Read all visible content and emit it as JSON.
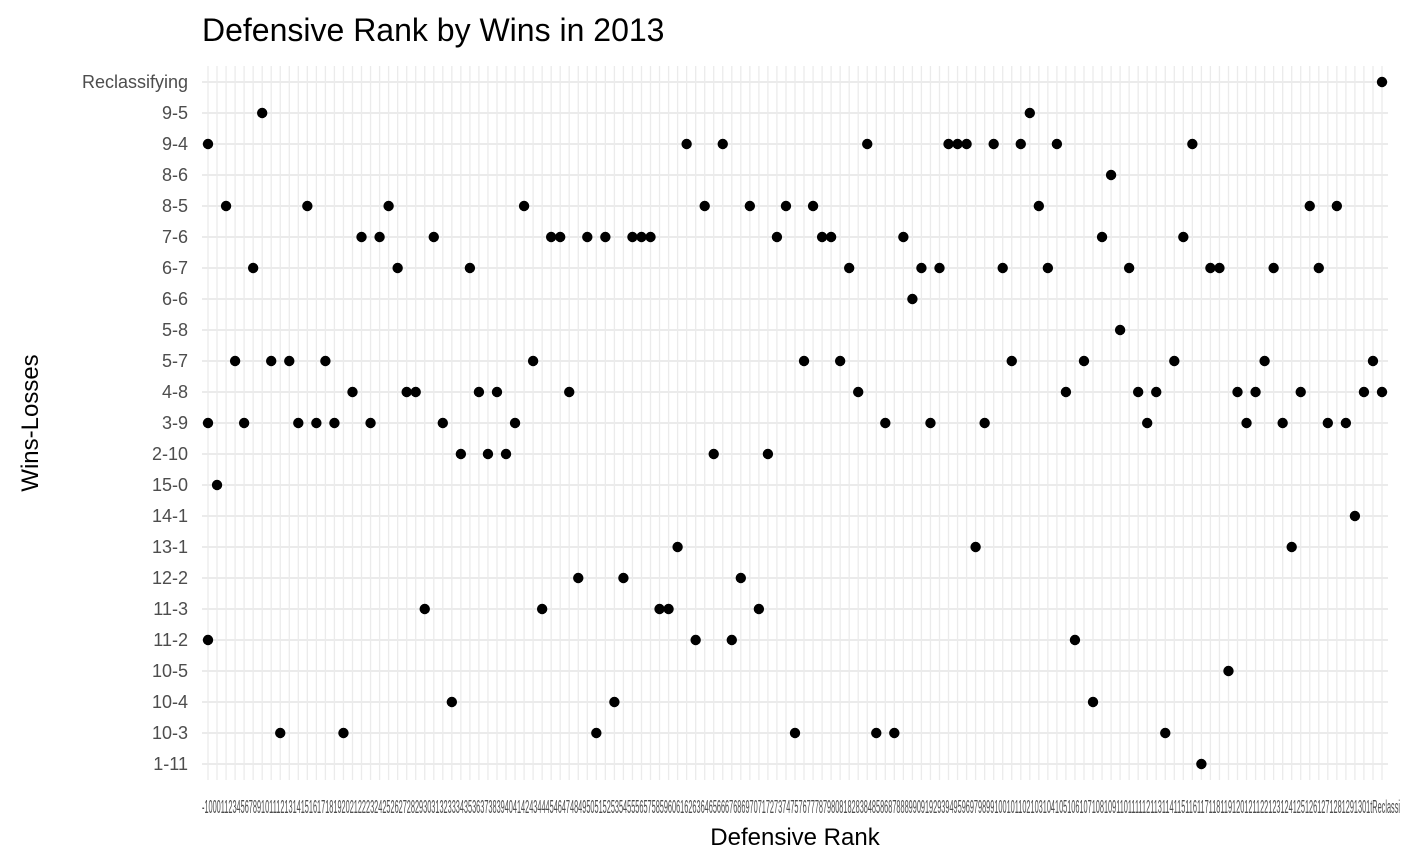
{
  "chart_data": {
    "type": "scatter",
    "title": "Defensive Rank by Wins in 2013",
    "xlabel": "Defensive Rank",
    "ylabel": "Wins-Losses",
    "grid": true,
    "legend": "none",
    "point_color": "#000000",
    "grid_color": "#ebebeb",
    "y_categories": [
      "1-11",
      "10-3",
      "10-4",
      "10-5",
      "11-2",
      "11-3",
      "12-2",
      "13-1",
      "14-1",
      "15-0",
      "2-10",
      "3-9",
      "4-8",
      "5-7",
      "5-8",
      "6-6",
      "6-7",
      "7-6",
      "8-5",
      "8-6",
      "9-4",
      "9-5",
      "Reclassifying"
    ],
    "x_category_count": 131,
    "points": [
      {
        "x": 1,
        "y": "9-4"
      },
      {
        "x": 1,
        "y": "3-9"
      },
      {
        "x": 1,
        "y": "11-2"
      },
      {
        "x": 2,
        "y": "15-0"
      },
      {
        "x": 3,
        "y": "8-5"
      },
      {
        "x": 4,
        "y": "5-7"
      },
      {
        "x": 5,
        "y": "3-9"
      },
      {
        "x": 6,
        "y": "6-7"
      },
      {
        "x": 7,
        "y": "9-5"
      },
      {
        "x": 8,
        "y": "5-7"
      },
      {
        "x": 9,
        "y": "10-3"
      },
      {
        "x": 10,
        "y": "5-7"
      },
      {
        "x": 11,
        "y": "3-9"
      },
      {
        "x": 12,
        "y": "8-5"
      },
      {
        "x": 13,
        "y": "3-9"
      },
      {
        "x": 14,
        "y": "5-7"
      },
      {
        "x": 15,
        "y": "3-9"
      },
      {
        "x": 16,
        "y": "10-3"
      },
      {
        "x": 17,
        "y": "4-8"
      },
      {
        "x": 18,
        "y": "7-6"
      },
      {
        "x": 19,
        "y": "3-9"
      },
      {
        "x": 20,
        "y": "7-6"
      },
      {
        "x": 21,
        "y": "8-5"
      },
      {
        "x": 22,
        "y": "6-7"
      },
      {
        "x": 23,
        "y": "4-8"
      },
      {
        "x": 24,
        "y": "4-8"
      },
      {
        "x": 25,
        "y": "11-3"
      },
      {
        "x": 26,
        "y": "7-6"
      },
      {
        "x": 27,
        "y": "3-9"
      },
      {
        "x": 28,
        "y": "10-4"
      },
      {
        "x": 29,
        "y": "2-10"
      },
      {
        "x": 30,
        "y": "6-7"
      },
      {
        "x": 31,
        "y": "4-8"
      },
      {
        "x": 32,
        "y": "2-10"
      },
      {
        "x": 33,
        "y": "4-8"
      },
      {
        "x": 34,
        "y": "2-10"
      },
      {
        "x": 35,
        "y": "3-9"
      },
      {
        "x": 36,
        "y": "8-5"
      },
      {
        "x": 37,
        "y": "5-7"
      },
      {
        "x": 38,
        "y": "11-3"
      },
      {
        "x": 39,
        "y": "7-6"
      },
      {
        "x": 40,
        "y": "7-6"
      },
      {
        "x": 41,
        "y": "4-8"
      },
      {
        "x": 42,
        "y": "12-2"
      },
      {
        "x": 43,
        "y": "7-6"
      },
      {
        "x": 44,
        "y": "10-3"
      },
      {
        "x": 45,
        "y": "7-6"
      },
      {
        "x": 46,
        "y": "10-4"
      },
      {
        "x": 47,
        "y": "12-2"
      },
      {
        "x": 48,
        "y": "7-6"
      },
      {
        "x": 49,
        "y": "7-6"
      },
      {
        "x": 50,
        "y": "7-6"
      },
      {
        "x": 51,
        "y": "11-3"
      },
      {
        "x": 52,
        "y": "11-3"
      },
      {
        "x": 53,
        "y": "13-1"
      },
      {
        "x": 54,
        "y": "9-4"
      },
      {
        "x": 55,
        "y": "11-2"
      },
      {
        "x": 56,
        "y": "8-5"
      },
      {
        "x": 57,
        "y": "2-10"
      },
      {
        "x": 58,
        "y": "9-4"
      },
      {
        "x": 59,
        "y": "11-2"
      },
      {
        "x": 60,
        "y": "12-2"
      },
      {
        "x": 61,
        "y": "8-5"
      },
      {
        "x": 62,
        "y": "11-3"
      },
      {
        "x": 63,
        "y": "2-10"
      },
      {
        "x": 64,
        "y": "7-6"
      },
      {
        "x": 65,
        "y": "8-5"
      },
      {
        "x": 66,
        "y": "10-3"
      },
      {
        "x": 67,
        "y": "5-7"
      },
      {
        "x": 68,
        "y": "8-5"
      },
      {
        "x": 69,
        "y": "7-6"
      },
      {
        "x": 70,
        "y": "7-6"
      },
      {
        "x": 71,
        "y": "5-7"
      },
      {
        "x": 72,
        "y": "6-7"
      },
      {
        "x": 73,
        "y": "4-8"
      },
      {
        "x": 74,
        "y": "9-4"
      },
      {
        "x": 75,
        "y": "10-3"
      },
      {
        "x": 76,
        "y": "3-9"
      },
      {
        "x": 77,
        "y": "10-3"
      },
      {
        "x": 78,
        "y": "7-6"
      },
      {
        "x": 79,
        "y": "6-6"
      },
      {
        "x": 80,
        "y": "6-7"
      },
      {
        "x": 81,
        "y": "3-9"
      },
      {
        "x": 82,
        "y": "6-7"
      },
      {
        "x": 83,
        "y": "9-4"
      },
      {
        "x": 84,
        "y": "9-4"
      },
      {
        "x": 85,
        "y": "9-4"
      },
      {
        "x": 86,
        "y": "13-1"
      },
      {
        "x": 87,
        "y": "3-9"
      },
      {
        "x": 88,
        "y": "9-4"
      },
      {
        "x": 89,
        "y": "6-7"
      },
      {
        "x": 90,
        "y": "5-7"
      },
      {
        "x": 91,
        "y": "9-4"
      },
      {
        "x": 92,
        "y": "9-5"
      },
      {
        "x": 93,
        "y": "8-5"
      },
      {
        "x": 94,
        "y": "6-7"
      },
      {
        "x": 95,
        "y": "9-4"
      },
      {
        "x": 96,
        "y": "4-8"
      },
      {
        "x": 97,
        "y": "11-2"
      },
      {
        "x": 98,
        "y": "5-7"
      },
      {
        "x": 99,
        "y": "10-4"
      },
      {
        "x": 100,
        "y": "7-6"
      },
      {
        "x": 101,
        "y": "8-6"
      },
      {
        "x": 102,
        "y": "5-8"
      },
      {
        "x": 103,
        "y": "6-7"
      },
      {
        "x": 104,
        "y": "4-8"
      },
      {
        "x": 105,
        "y": "3-9"
      },
      {
        "x": 106,
        "y": "4-8"
      },
      {
        "x": 107,
        "y": "10-3"
      },
      {
        "x": 108,
        "y": "5-7"
      },
      {
        "x": 109,
        "y": "7-6"
      },
      {
        "x": 110,
        "y": "9-4"
      },
      {
        "x": 111,
        "y": "1-11"
      },
      {
        "x": 112,
        "y": "6-7"
      },
      {
        "x": 113,
        "y": "6-7"
      },
      {
        "x": 114,
        "y": "10-5"
      },
      {
        "x": 115,
        "y": "4-8"
      },
      {
        "x": 116,
        "y": "3-9"
      },
      {
        "x": 117,
        "y": "4-8"
      },
      {
        "x": 118,
        "y": "5-7"
      },
      {
        "x": 119,
        "y": "6-7"
      },
      {
        "x": 120,
        "y": "3-9"
      },
      {
        "x": 121,
        "y": "13-1"
      },
      {
        "x": 122,
        "y": "4-8"
      },
      {
        "x": 123,
        "y": "8-5"
      },
      {
        "x": 124,
        "y": "6-7"
      },
      {
        "x": 125,
        "y": "3-9"
      },
      {
        "x": 126,
        "y": "8-5"
      },
      {
        "x": 127,
        "y": "3-9"
      },
      {
        "x": 128,
        "y": "14-1"
      },
      {
        "x": 129,
        "y": "4-8"
      },
      {
        "x": 130,
        "y": "5-7"
      },
      {
        "x": 131,
        "y": "4-8"
      },
      {
        "x": 131,
        "y": "Reclassifying"
      }
    ],
    "x_tick_labels_overlapping": "-100011234567891011121314151617181920212223242526272829303132333435363738394041424344454647484950515253545556575859606162636465666768697071727374757677787980818283848586878889909192939495969798991001011021031041051061071081091101111121131141151161171181191201211221231241251261271281291301tReclassi"
  }
}
